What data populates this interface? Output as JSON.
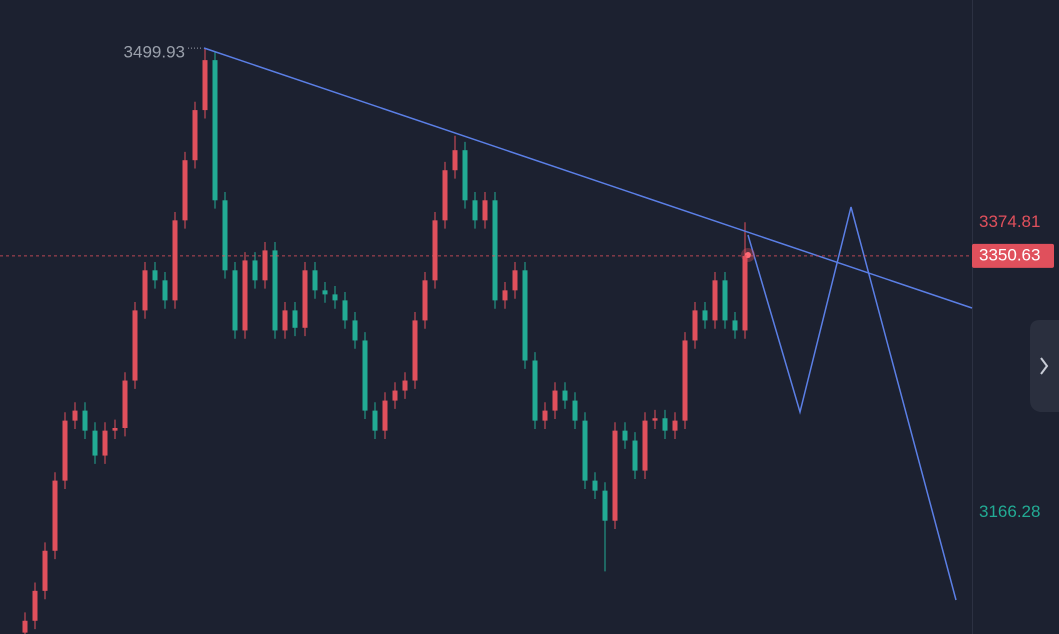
{
  "chart_data": {
    "type": "candlestick",
    "open": [
      3080.0,
      3088.5,
      3110.0,
      3138.8,
      3189.2,
      3232.3,
      3239.5,
      3225.1,
      3207.2,
      3225.1,
      3227.0,
      3261.1,
      3311.5,
      3340.3,
      3333.1,
      3318.7,
      3376.2,
      3419.4,
      3455.4,
      3491.3,
      3390.6,
      3340.3,
      3297.1,
      3347.4,
      3333.1,
      3354.6,
      3297.1,
      3311.5,
      3299.0,
      3340.3,
      3325.9,
      3323.0,
      3318.7,
      3304.3,
      3289.9,
      3239.5,
      3225.1,
      3246.7,
      3253.9,
      3261.1,
      3304.3,
      3333.1,
      3376.2,
      3412.2,
      3426.6,
      3390.6,
      3376.2,
      3390.6,
      3318.7,
      3325.9,
      3340.3,
      3275.5,
      3232.3,
      3239.5,
      3253.9,
      3246.7,
      3232.3,
      3189.2,
      3182.0,
      3160.4,
      3225.1,
      3218.0,
      3196.4,
      3232.3,
      3234.0,
      3225.1,
      3232.3,
      3289.9,
      3311.5,
      3304.3,
      3333.1,
      3304.3,
      3297.1
    ],
    "high": [
      3094.5,
      3116.0,
      3144.8,
      3195.2,
      3238.3,
      3245.5,
      3245.5,
      3231.1,
      3231.1,
      3233.0,
      3267.1,
      3317.5,
      3346.3,
      3346.3,
      3339.1,
      3382.2,
      3425.4,
      3461.4,
      3499.9,
      3497.3,
      3396.6,
      3346.3,
      3353.4,
      3353.4,
      3360.6,
      3360.6,
      3317.5,
      3317.5,
      3346.3,
      3346.3,
      3331.9,
      3329.0,
      3324.7,
      3310.3,
      3295.9,
      3245.5,
      3252.7,
      3259.9,
      3267.1,
      3310.3,
      3339.1,
      3382.2,
      3418.2,
      3437.0,
      3432.6,
      3396.6,
      3396.6,
      3396.6,
      3331.9,
      3346.3,
      3346.3,
      3281.5,
      3245.5,
      3259.9,
      3259.9,
      3252.7,
      3238.3,
      3195.2,
      3188.0,
      3231.1,
      3231.1,
      3224.0,
      3238.3,
      3240.0,
      3240.0,
      3238.3,
      3295.9,
      3317.5,
      3317.5,
      3339.1,
      3339.1,
      3310.3,
      3374.8
    ],
    "low": [
      3074.0,
      3082.5,
      3104.0,
      3132.8,
      3183.2,
      3226.3,
      3219.1,
      3201.2,
      3201.2,
      3219.1,
      3221.0,
      3255.1,
      3305.5,
      3327.1,
      3312.7,
      3312.7,
      3370.2,
      3413.4,
      3449.4,
      3384.6,
      3334.3,
      3291.1,
      3291.1,
      3327.1,
      3327.1,
      3291.1,
      3291.1,
      3293.0,
      3293.0,
      3319.9,
      3317.0,
      3312.7,
      3298.3,
      3283.9,
      3233.5,
      3219.1,
      3219.1,
      3240.7,
      3247.9,
      3255.1,
      3298.3,
      3327.1,
      3370.2,
      3406.2,
      3384.6,
      3370.2,
      3370.2,
      3312.7,
      3312.7,
      3319.9,
      3269.5,
      3226.3,
      3226.3,
      3233.5,
      3240.7,
      3226.3,
      3183.2,
      3176.0,
      3124.0,
      3154.4,
      3212.0,
      3190.4,
      3190.4,
      3226.3,
      3219.1,
      3219.1,
      3226.3,
      3283.9,
      3298.3,
      3298.3,
      3298.3,
      3291.1,
      3291.1
    ],
    "close": [
      3088.5,
      3110.0,
      3138.8,
      3189.2,
      3232.3,
      3239.5,
      3225.1,
      3207.2,
      3225.1,
      3227.0,
      3261.1,
      3311.5,
      3340.3,
      3333.1,
      3318.7,
      3376.2,
      3419.4,
      3455.4,
      3491.3,
      3390.6,
      3340.3,
      3297.1,
      3347.4,
      3333.1,
      3354.6,
      3297.1,
      3311.5,
      3299.0,
      3340.3,
      3325.9,
      3323.0,
      3318.7,
      3304.3,
      3289.9,
      3239.5,
      3225.1,
      3246.7,
      3253.9,
      3261.1,
      3304.3,
      3333.1,
      3376.2,
      3412.2,
      3426.6,
      3390.6,
      3376.2,
      3390.6,
      3318.7,
      3325.9,
      3340.3,
      3275.5,
      3232.3,
      3239.5,
      3253.9,
      3246.7,
      3232.3,
      3189.2,
      3182.0,
      3160.4,
      3225.1,
      3218.0,
      3196.4,
      3232.3,
      3234.0,
      3225.1,
      3232.3,
      3289.9,
      3311.5,
      3304.3,
      3333.1,
      3304.3,
      3297.1,
      3350.6
    ],
    "up_color": "#e0505c",
    "down_color": "#22ab94",
    "ylim": [
      3079,
      3534.5
    ],
    "price_labels": [
      {
        "value": 3374.81,
        "color": "#e0505c"
      },
      {
        "value": 3350.63,
        "color": "#ffffff",
        "background": "#e0505c",
        "line": true
      },
      {
        "value": 3166.28,
        "color": "#22ab94"
      }
    ],
    "peak_label": {
      "value": 3499.93,
      "color": "#9aa0ab"
    }
  }
}
